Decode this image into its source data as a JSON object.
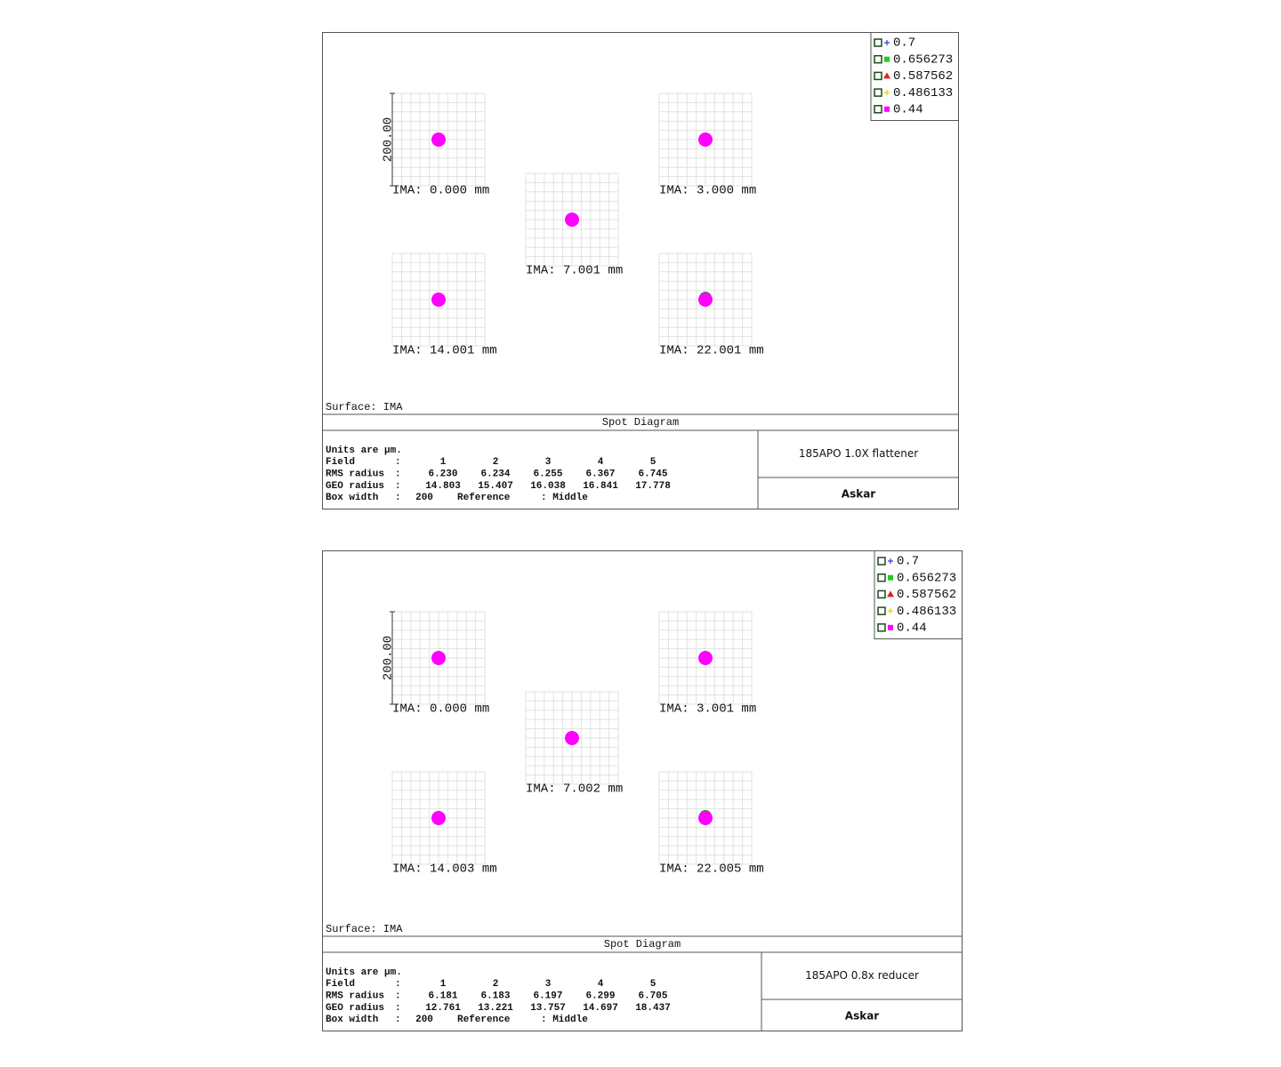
{
  "panels": [
    {
      "legend": [
        {
          "label": "0.7",
          "color": "#3a3ad0",
          "marker": "plus"
        },
        {
          "label": "0.656273",
          "color": "#22cc22",
          "marker": "square"
        },
        {
          "label": "0.587562",
          "color": "#dd2222",
          "marker": "triangle"
        },
        {
          "label": "0.486133",
          "color": "#d8d020",
          "marker": "plus"
        },
        {
          "label": "0.44",
          "color": "#ff00ff",
          "marker": "square"
        }
      ],
      "scale_label": "200.00",
      "fields": [
        "IMA: 0.000 mm",
        "IMA: 3.000 mm",
        "IMA: 7.001 mm",
        "IMA: 14.001 mm",
        "IMA: 22.001 mm"
      ],
      "surface": "Surface: IMA",
      "title": "Spot Diagram",
      "info": [
        [
          "Units are µm."
        ],
        [
          "Field",
          ":",
          "1",
          "2",
          "3",
          "4",
          "5"
        ],
        [
          "RMS radius",
          ":",
          "6.230",
          "6.234",
          "6.255",
          "6.367",
          "6.745"
        ],
        [
          "GEO radius",
          ":",
          "14.803",
          "15.407",
          "16.038",
          "16.841",
          "17.778"
        ],
        [
          "Box width",
          ":",
          "200",
          "Reference",
          ": Middle"
        ]
      ],
      "product": "185APO 1.0X flattener",
      "brand": "Askar"
    },
    {
      "legend": [
        {
          "label": "0.7",
          "color": "#3a3ad0",
          "marker": "plus"
        },
        {
          "label": "0.656273",
          "color": "#22cc22",
          "marker": "square"
        },
        {
          "label": "0.587562",
          "color": "#dd2222",
          "marker": "triangle"
        },
        {
          "label": "0.486133",
          "color": "#d8d020",
          "marker": "plus"
        },
        {
          "label": "0.44",
          "color": "#ff00ff",
          "marker": "square"
        }
      ],
      "scale_label": "200.00",
      "fields": [
        "IMA: 0.000 mm",
        "IMA: 3.001 mm",
        "IMA: 7.002 mm",
        "IMA: 14.003 mm",
        "IMA: 22.005 mm"
      ],
      "surface": "Surface: IMA",
      "title": "Spot Diagram",
      "info": [
        [
          "Units are µm."
        ],
        [
          "Field",
          ":",
          "1",
          "2",
          "3",
          "4",
          "5"
        ],
        [
          "RMS radius",
          ":",
          "6.181",
          "6.183",
          "6.197",
          "6.299",
          "6.705"
        ],
        [
          "GEO radius",
          ":",
          "12.761",
          "13.221",
          "13.757",
          "14.697",
          "18.437"
        ],
        [
          "Box width",
          ":",
          "200",
          "Reference",
          ": Middle"
        ]
      ],
      "product": "185APO 0.8x reducer",
      "brand": "Askar"
    }
  ]
}
